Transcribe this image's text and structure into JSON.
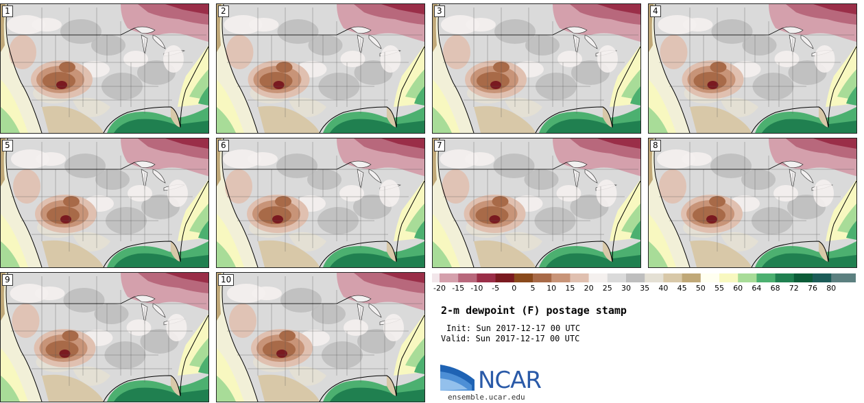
{
  "panels": [
    "1",
    "2",
    "3",
    "4",
    "5",
    "6",
    "7",
    "8",
    "9",
    "10"
  ],
  "colorbar": {
    "labels": [
      "-20",
      "-15",
      "-10",
      "-5",
      "0",
      "5",
      "10",
      "15",
      "20",
      "25",
      "30",
      "35",
      "40",
      "45",
      "50",
      "55",
      "60",
      "64",
      "68",
      "72",
      "76",
      "80"
    ],
    "colors": [
      "#f2e6ea",
      "#d4a0ac",
      "#b8687c",
      "#9a2e48",
      "#7a1a20",
      "#8a4a1c",
      "#a86a48",
      "#c89478",
      "#e0c0b0",
      "#f4f0ee",
      "#dadada",
      "#bebebe",
      "#e4e0d4",
      "#d8c8a8",
      "#c0a878",
      "#fffff0",
      "#f8f8c0",
      "#a8dc98",
      "#4cb070",
      "#208050",
      "#0c5c38",
      "#1c5c58",
      "#5c8080"
    ]
  },
  "title": "2-m dewpoint (F) postage stamp",
  "init": "Init: Sun 2017-12-17 00 UTC",
  "valid": "Valid: Sun 2017-12-17 00 UTC",
  "logo_text": "NCAR",
  "site": "ensemble.ucar.edu"
}
